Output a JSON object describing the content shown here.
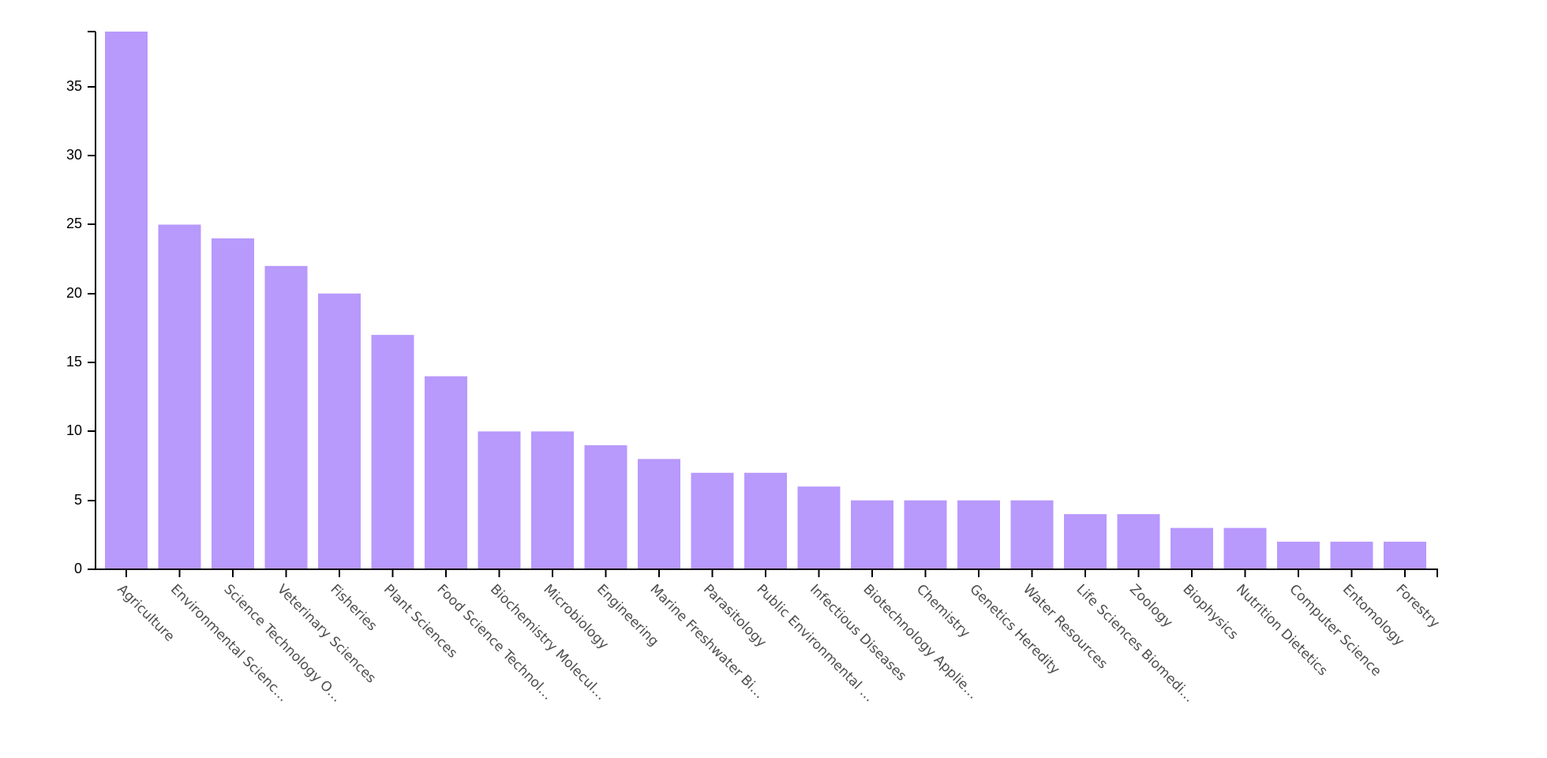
{
  "colors": {
    "bar": "#b899fc",
    "axis": "#000000",
    "tick_label": "#4d4d4d"
  },
  "chart_data": {
    "type": "bar",
    "title": "",
    "xlabel": "",
    "ylabel": "",
    "ylim": [
      0,
      39
    ],
    "yticks": [
      0,
      5,
      10,
      15,
      20,
      25,
      30,
      35
    ],
    "grid": false,
    "categories": [
      "Agriculture",
      "Environmental Scienc…",
      "Science Technology O…",
      "Veterinary Sciences",
      "Fisheries",
      "Plant Sciences",
      "Food Science Technol…",
      "Biochemistry Molecul…",
      "Microbiology",
      "Engineering",
      "Marine Freshwater Bi…",
      "Parasitology",
      "Public Environmental …",
      "Infectious Diseases",
      "Biotechnology Applie…",
      "Chemistry",
      "Genetics Heredity",
      "Water Resources",
      "Life Sciences Biomedi…",
      "Zoology",
      "Biophysics",
      "Nutrition Dietetics",
      "Computer Science",
      "Entomology",
      "Forestry"
    ],
    "values": [
      39,
      25,
      24,
      22,
      20,
      17,
      14,
      10,
      10,
      9,
      8,
      7,
      7,
      6,
      5,
      5,
      5,
      5,
      4,
      4,
      3,
      3,
      2,
      2,
      2
    ]
  }
}
